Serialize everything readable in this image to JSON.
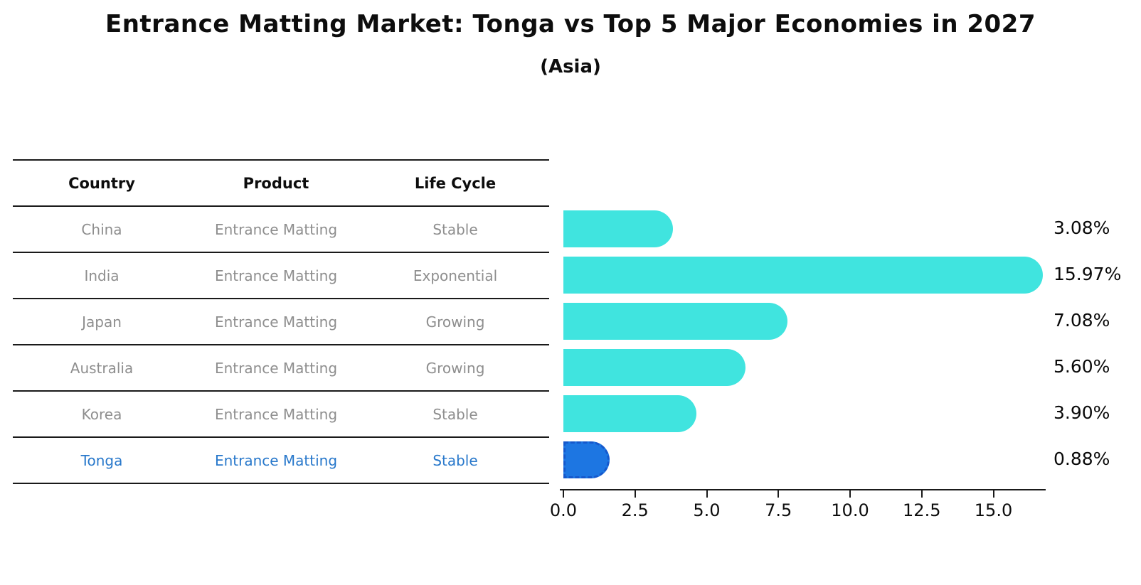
{
  "title": "Entrance Matting Market: Tonga vs Top 5 Major Economies in 2027",
  "subtitle": "(Asia)",
  "table": {
    "headers": [
      "Country",
      "Product",
      "Life Cycle"
    ],
    "rows": [
      {
        "country": "China",
        "product": "Entrance Matting",
        "life_cycle": "Stable",
        "highlight": false
      },
      {
        "country": "India",
        "product": "Entrance Matting",
        "life_cycle": "Exponential",
        "highlight": false
      },
      {
        "country": "Japan",
        "product": "Entrance Matting",
        "life_cycle": "Growing",
        "highlight": false
      },
      {
        "country": "Australia",
        "product": "Entrance Matting",
        "life_cycle": "Growing",
        "highlight": false
      },
      {
        "country": "Korea",
        "product": "Entrance Matting",
        "life_cycle": "Stable",
        "highlight": false
      },
      {
        "country": "Tonga",
        "product": "Entrance Matting",
        "life_cycle": "Stable",
        "highlight": true
      }
    ]
  },
  "chart_data": {
    "type": "bar",
    "orientation": "horizontal",
    "title": "Entrance Matting Market: Tonga vs Top 5 Major Economies in 2027",
    "subtitle": "(Asia)",
    "categories": [
      "China",
      "India",
      "Japan",
      "Australia",
      "Korea",
      "Tonga"
    ],
    "values": [
      3.08,
      15.97,
      7.08,
      5.6,
      3.9,
      0.88
    ],
    "value_labels": [
      "3.08%",
      "15.97%",
      "7.08%",
      "5.60%",
      "3.90%",
      "0.88%"
    ],
    "x_ticks": [
      "0.0",
      "2.5",
      "5.0",
      "7.5",
      "10.0",
      "12.5",
      "15.0"
    ],
    "x_tick_values": [
      0,
      2.5,
      5,
      7.5,
      10,
      12.5,
      15
    ],
    "xlim": [
      0,
      16.8
    ],
    "grid": false,
    "legend": false,
    "bar_color": "#40E4DF",
    "highlight_color": "#1D76E2",
    "highlight_index": 5
  },
  "colors": {
    "bar": "#40E4DF",
    "highlight_bar": "#1D76E2",
    "highlight_text": "#2878CB",
    "table_text": "#8E8E8E",
    "line": "#1A1A1A"
  }
}
